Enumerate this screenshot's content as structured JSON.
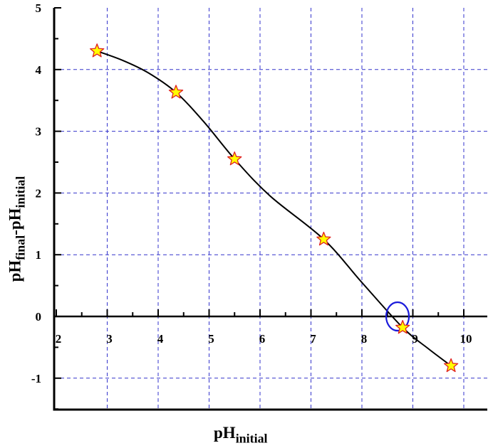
{
  "chart_data": {
    "type": "scatter",
    "xlabel": {
      "main": "pH",
      "sub": "initial"
    },
    "ylabel": {
      "main1": "pH",
      "sub1": "final",
      "sep": "-pH",
      "sub2": "initial"
    },
    "xlim": [
      2,
      10.5
    ],
    "ylim": [
      -1.5,
      5
    ],
    "xticks": [
      "2",
      "3",
      "4",
      "5",
      "6",
      "7",
      "8",
      "9",
      "10"
    ],
    "yticks": [
      "-1",
      "0",
      "1",
      "2",
      "3",
      "4",
      "5"
    ],
    "grid": true,
    "points": [
      {
        "x": 2.8,
        "y": 4.3
      },
      {
        "x": 4.35,
        "y": 3.63
      },
      {
        "x": 5.5,
        "y": 2.55
      },
      {
        "x": 7.25,
        "y": 1.25
      },
      {
        "x": 8.8,
        "y": -0.18
      },
      {
        "x": 9.75,
        "y": -0.8
      }
    ],
    "fit_curve": [
      [
        2.8,
        4.3
      ],
      [
        3.3,
        4.15
      ],
      [
        3.8,
        3.95
      ],
      [
        4.35,
        3.63
      ],
      [
        4.9,
        3.15
      ],
      [
        5.5,
        2.55
      ],
      [
        6.2,
        1.95
      ],
      [
        7.25,
        1.25
      ],
      [
        8.0,
        0.55
      ],
      [
        8.8,
        -0.18
      ],
      [
        9.3,
        -0.52
      ],
      [
        9.75,
        -0.8
      ]
    ],
    "highlight_circle": {
      "x": 8.7,
      "y": 0.0
    },
    "colors": {
      "grid": "#3333cc",
      "marker_fill": "#ffff00",
      "marker_stroke": "#e02020",
      "curve": "#000000",
      "circle": "#1a1adb"
    }
  }
}
